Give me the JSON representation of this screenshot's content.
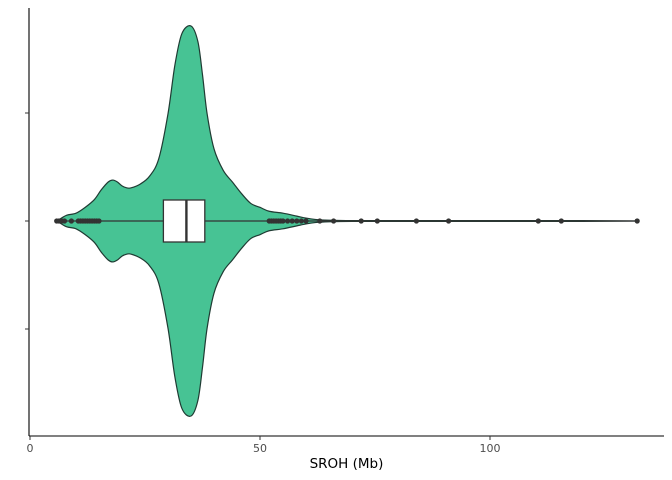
{
  "chart_data": {
    "type": "violin",
    "orientation": "horizontal",
    "xlabel": "SROH (Mb)",
    "ylabel": "",
    "xlim": [
      0,
      138
    ],
    "x_ticks": [
      0,
      50,
      100
    ],
    "x_tick_labels": [
      "0",
      "50",
      "100"
    ],
    "y_tick_count": 3,
    "grid": false,
    "legend": "none",
    "colors": {
      "violin_fill": "#47c394",
      "violin_stroke": "#1f3b33",
      "box_fill": "#ffffff",
      "box_stroke": "#333333",
      "whisker": "#333333",
      "outlier": "#333333",
      "axis": "#000000",
      "tick_label": "#4d4d4d"
    },
    "density_profile": [
      {
        "x": 5.8,
        "h": 0.0
      },
      {
        "x": 6.5,
        "h": 0.01
      },
      {
        "x": 8,
        "h": 0.03
      },
      {
        "x": 10,
        "h": 0.04
      },
      {
        "x": 12,
        "h": 0.07
      },
      {
        "x": 14,
        "h": 0.11
      },
      {
        "x": 15.5,
        "h": 0.16
      },
      {
        "x": 17,
        "h": 0.2
      },
      {
        "x": 18,
        "h": 0.21
      },
      {
        "x": 19,
        "h": 0.2
      },
      {
        "x": 20,
        "h": 0.18
      },
      {
        "x": 21,
        "h": 0.17
      },
      {
        "x": 22,
        "h": 0.17
      },
      {
        "x": 24,
        "h": 0.19
      },
      {
        "x": 26,
        "h": 0.23
      },
      {
        "x": 28,
        "h": 0.32
      },
      {
        "x": 30,
        "h": 0.55
      },
      {
        "x": 31.5,
        "h": 0.8
      },
      {
        "x": 33,
        "h": 0.96
      },
      {
        "x": 35,
        "h": 1.0
      },
      {
        "x": 36.5,
        "h": 0.92
      },
      {
        "x": 37.5,
        "h": 0.75
      },
      {
        "x": 38.5,
        "h": 0.55
      },
      {
        "x": 40,
        "h": 0.37
      },
      {
        "x": 42,
        "h": 0.26
      },
      {
        "x": 44,
        "h": 0.2
      },
      {
        "x": 46,
        "h": 0.14
      },
      {
        "x": 48,
        "h": 0.09
      },
      {
        "x": 50,
        "h": 0.07
      },
      {
        "x": 52,
        "h": 0.05
      },
      {
        "x": 55,
        "h": 0.04
      },
      {
        "x": 58,
        "h": 0.025
      },
      {
        "x": 60,
        "h": 0.015
      },
      {
        "x": 62,
        "h": 0.008
      },
      {
        "x": 65,
        "h": 0.004
      },
      {
        "x": 70,
        "h": 0.002
      },
      {
        "x": 80,
        "h": 0.002
      },
      {
        "x": 100,
        "h": 0.002
      },
      {
        "x": 120,
        "h": 0.002
      },
      {
        "x": 132,
        "h": 0.0
      }
    ],
    "box": {
      "q1": 29,
      "median": 34,
      "q3": 38,
      "whisker_low": 5.8,
      "whisker_high": 132
    },
    "outliers": [
      5.8,
      6.3,
      6.9,
      7.5,
      9,
      10.5,
      11,
      11.5,
      12,
      12.5,
      13,
      13.5,
      14,
      14.5,
      15,
      52,
      52.5,
      53,
      53.5,
      54,
      54.5,
      55,
      56,
      57,
      58,
      59,
      60,
      63,
      66,
      72,
      75.5,
      84,
      91,
      110.5,
      115.5,
      132
    ]
  }
}
